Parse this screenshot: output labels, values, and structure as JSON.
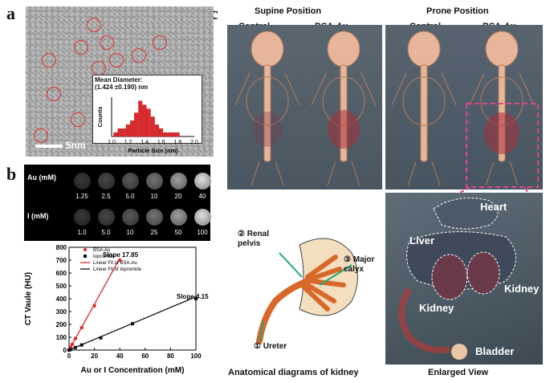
{
  "panels": {
    "a": "a",
    "b": "b",
    "c": "c"
  },
  "tem": {
    "scale_label": "5nm"
  },
  "histogram": {
    "title_line1": "Mean Diameter:",
    "title_line2": "(1.424 ±0.190) nm",
    "ylabel": "Counts",
    "xlabel": "Particle Size (nm)",
    "xticks": [
      "1.0",
      "1.2",
      "1.4",
      "1.6",
      "1.8",
      "2.0"
    ]
  },
  "vials": {
    "row1_label": "Au (mM)",
    "row1": [
      "1.25",
      "2.5",
      "5.0",
      "10",
      "20",
      "40"
    ],
    "row2_label": "I  (mM)",
    "row2": [
      "1.0",
      "5.0",
      "10",
      "25",
      "50",
      "100"
    ]
  },
  "ct_plot": {
    "ylabel": "CT Vaule (HU)",
    "xlabel": "Au or I Concentration (mM)",
    "slope1": "Slope 17.85",
    "slope2": "Slope 4.15",
    "legend": [
      "BSA-Au",
      "Iopromide",
      "Linear Fit of BSA-Au",
      "Linear Fit of Iopromide"
    ],
    "yticks": [
      "0",
      "100",
      "200",
      "300",
      "400",
      "500",
      "600",
      "700",
      "800"
    ],
    "xticks": [
      "0",
      "20",
      "40",
      "60",
      "80",
      "100"
    ]
  },
  "imaging": {
    "supine": "Supine Position",
    "prone": "Prone Position",
    "control1": "Control",
    "bsa1": "BSA-Au",
    "control2": "Control",
    "bsa2": "BSA-Au",
    "enlarged_caption": "Enlarged View",
    "organs": {
      "heart": "Heart",
      "liver": "Liver",
      "kidney1": "Kidney",
      "kidney2": "Kidney",
      "bladder": "Bladder"
    }
  },
  "kidney_diagram": {
    "renal": "② Renal\npelvis",
    "major": "③ Major\ncalyx",
    "ureter": "① Ureter",
    "caption": "Anatomical diagrams of kidney"
  },
  "chart_data": [
    {
      "type": "bar",
      "title": "Mean Diameter: (1.424 ±0.190) nm",
      "xlabel": "Particle Size (nm)",
      "ylabel": "Counts",
      "x": [
        1.05,
        1.1,
        1.15,
        1.2,
        1.25,
        1.3,
        1.35,
        1.4,
        1.45,
        1.5,
        1.55,
        1.6,
        1.65,
        1.7,
        1.75,
        1.8
      ],
      "values": [
        1,
        2,
        2,
        3,
        4,
        6,
        9,
        8,
        7,
        5,
        3,
        2,
        1,
        1,
        1,
        1
      ],
      "xlim": [
        1.0,
        2.0
      ]
    },
    {
      "type": "scatter",
      "xlabel": "Au or I Concentration (mM)",
      "ylabel": "CT Vaule (HU)",
      "xlim": [
        0,
        100
      ],
      "ylim": [
        0,
        800
      ],
      "series": [
        {
          "name": "BSA-Au",
          "color": "#e0292b",
          "x": [
            0,
            1.25,
            2.5,
            5,
            10,
            20,
            40
          ],
          "y": [
            0,
            22,
            45,
            90,
            175,
            345,
            700
          ]
        },
        {
          "name": "Iopromide",
          "color": "#111111",
          "x": [
            0,
            1,
            5,
            10,
            25,
            50,
            100
          ],
          "y": [
            0,
            4,
            20,
            40,
            95,
            205,
            400
          ]
        }
      ],
      "fits": [
        {
          "name": "Linear Fit of BSA-Au",
          "slope": 17.85,
          "color": "#e0292b"
        },
        {
          "name": "Linear Fit of Iopromide",
          "slope": 4.15,
          "color": "#111111"
        }
      ]
    }
  ]
}
